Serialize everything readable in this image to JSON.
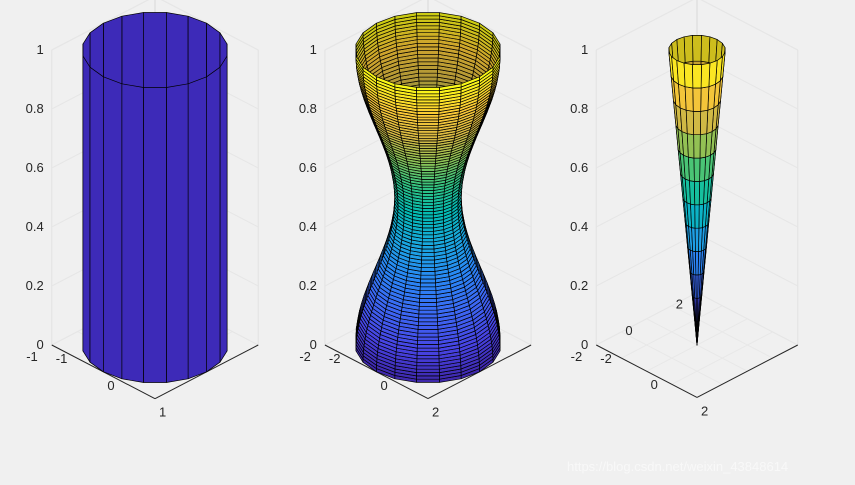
{
  "chart_data": [
    {
      "type": "surface3d",
      "surface": "cylinder",
      "profile_r": [
        1,
        1
      ],
      "profile_z": [
        0,
        1
      ],
      "n_theta": 20,
      "color_mode": "flat",
      "flat_color": "#3d2ab8",
      "edge_color": "#000000",
      "zlim": [
        0,
        1
      ],
      "z_ticks": [
        "0",
        "0.2",
        "0.4",
        "0.6",
        "0.8",
        "1"
      ],
      "x_ticks": [
        "-1",
        "0",
        "1"
      ],
      "y_ticks": [
        "-1",
        "0",
        "1"
      ],
      "lim": 1
    },
    {
      "type": "surface3d",
      "surface": "cylinder",
      "profile": "2 + cos(t)",
      "profile_r": [
        3,
        2.998,
        2.992,
        2.982,
        2.969,
        2.951,
        2.931,
        2.906,
        2.879,
        2.848,
        2.814,
        2.778,
        2.738,
        2.696,
        2.652,
        2.605,
        2.556,
        2.506,
        2.454,
        2.401,
        2.347,
        2.292,
        2.236,
        2.18,
        2.125,
        2.069,
        2.014,
        1.961,
        1.908,
        1.857,
        1.807,
        1.76,
        1.714,
        1.671,
        1.63,
        1.592,
        1.556,
        1.524,
        1.495,
        1.469,
        1.446,
        1.427,
        1.411,
        1.399,
        1.39,
        1.385,
        1.383,
        1.385,
        1.39,
        1.399,
        1.411,
        1.427,
        1.446,
        1.469,
        1.495,
        1.524,
        1.556,
        1.592,
        1.63,
        1.671,
        1.714,
        1.76,
        1.807,
        1.857,
        1.908,
        1.961,
        2.014,
        2.069,
        2.125,
        2.18,
        2.236,
        2.292,
        2.347,
        2.401,
        2.454,
        2.506,
        2.556,
        2.605,
        2.652,
        2.696,
        2.738,
        2.778,
        2.814,
        2.848,
        2.879,
        2.906,
        2.931,
        2.951,
        2.969,
        2.982,
        2.992,
        2.998,
        3
      ],
      "n_theta": 20,
      "color_mode": "z",
      "edge_color": "#000000",
      "zlim": [
        0,
        1
      ],
      "z_ticks": [
        "0",
        "0.2",
        "0.4",
        "0.6",
        "0.8",
        "1"
      ],
      "x_ticks": [
        "-2",
        "0",
        "2"
      ],
      "y_ticks": [
        "-2",
        "0",
        "2"
      ],
      "lim": 3
    },
    {
      "type": "surface3d",
      "surface": "cylinder",
      "profile_r": [
        0,
        1
      ],
      "profile_z": [
        0,
        1
      ],
      "n_theta": 20,
      "n_z": 13,
      "color_mode": "z",
      "edge_color": "#000000",
      "zlim": [
        0,
        1
      ],
      "z_ticks": [
        "0",
        "0.2",
        "0.4",
        "0.6",
        "0.8",
        "1"
      ],
      "x_ticks": [
        "-2",
        "0",
        "2"
      ],
      "y_ticks": [
        "-2",
        "0",
        "2"
      ],
      "lim": 2.5
    }
  ],
  "colormap": [
    "#3e26a8",
    "#4743e3",
    "#3c67f4",
    "#2987f5",
    "#1aa7e0",
    "#02bbb3",
    "#33c480",
    "#8dc255",
    "#d6b844",
    "#fcc937",
    "#f9fb15"
  ],
  "watermark": "https://blog.csdn.net/weixin_43848614"
}
